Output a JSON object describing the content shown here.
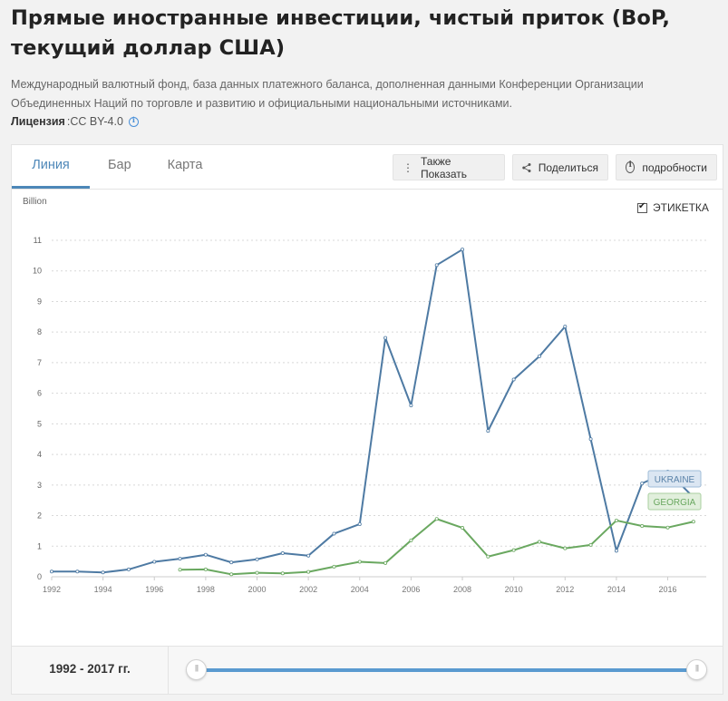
{
  "header": {
    "title": "Прямые иностранные инвестиции, чистый приток (BoP, текущий доллар США)",
    "source": "Международный валютный фонд, база данных платежного баланса, дополненная данными Конференции Организации Объединенных Наций по торговле и развитию и официальными национальными источниками.",
    "license_label": "Лицензия",
    "license_value": ":CC BY-4.0"
  },
  "tabs": [
    {
      "label": "Линия",
      "active": true
    },
    {
      "label": "Бар",
      "active": false
    },
    {
      "label": "Карта",
      "active": false
    }
  ],
  "toolbar": {
    "also_show": "Также Показать",
    "share": "Поделиться",
    "details": "подробности"
  },
  "label_toggle": {
    "label": "ЭТИКЕТКА",
    "checked": true
  },
  "footer": {
    "range_label": "1992 - 2017 гг."
  },
  "chart_data": {
    "type": "line",
    "ylabel": "Billion",
    "ylim": [
      0,
      11
    ],
    "yticks": [
      "0",
      "1",
      "2",
      "3",
      "4",
      "5",
      "6",
      "7",
      "8",
      "9",
      "10",
      "11"
    ],
    "xticks": [
      "1992",
      "1994",
      "1996",
      "1998",
      "2000",
      "2002",
      "2004",
      "2006",
      "2008",
      "2010",
      "2012",
      "2014",
      "2016"
    ],
    "grid": true,
    "series": [
      {
        "name": "UKRAINE",
        "color": "#4e7aa3",
        "x": [
          1992,
          1993,
          1994,
          1995,
          1996,
          1997,
          1998,
          1999,
          2000,
          2001,
          2002,
          2003,
          2004,
          2005,
          2006,
          2007,
          2008,
          2009,
          2010,
          2011,
          2012,
          2013,
          2014,
          2015,
          2016,
          2017
        ],
        "values": [
          0.17,
          0.17,
          0.14,
          0.24,
          0.49,
          0.59,
          0.72,
          0.47,
          0.57,
          0.77,
          0.69,
          1.41,
          1.72,
          7.81,
          5.6,
          10.19,
          10.7,
          4.77,
          6.45,
          7.21,
          8.18,
          4.5,
          0.85,
          3.05,
          3.44,
          2.6
        ]
      },
      {
        "name": "GEORGIA",
        "color": "#6aa860",
        "x": [
          1997,
          1998,
          1999,
          2000,
          2001,
          2002,
          2003,
          2004,
          2005,
          2006,
          2007,
          2008,
          2009,
          2010,
          2011,
          2012,
          2013,
          2014,
          2015,
          2016,
          2017
        ],
        "values": [
          0.23,
          0.24,
          0.08,
          0.13,
          0.11,
          0.16,
          0.33,
          0.49,
          0.45,
          1.19,
          1.89,
          1.6,
          0.66,
          0.87,
          1.14,
          0.93,
          1.04,
          1.84,
          1.66,
          1.61,
          1.8
        ]
      }
    ]
  }
}
